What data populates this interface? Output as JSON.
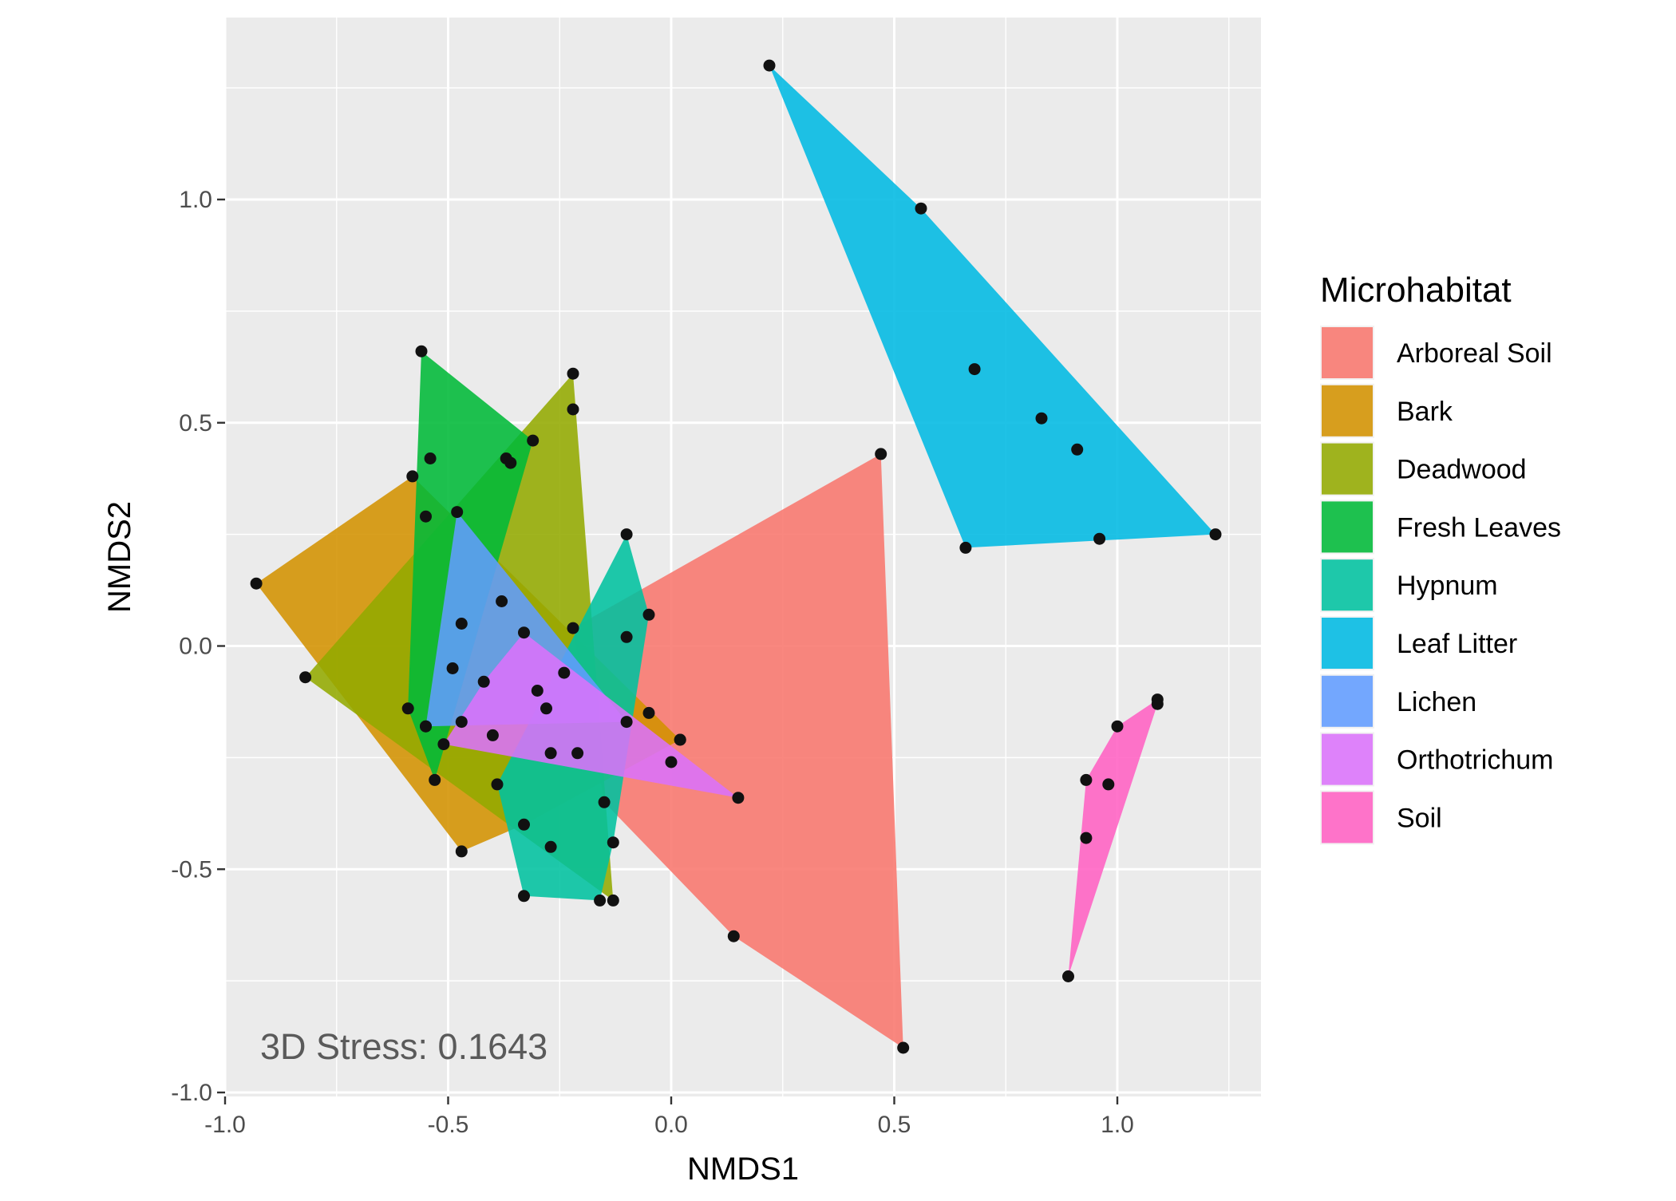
{
  "chart_data": {
    "type": "scatter",
    "title": "",
    "xlabel": "NMDS1",
    "ylabel": "NMDS2",
    "xlim": [
      -1.05,
      1.3
    ],
    "ylim": [
      -1.02,
      1.4
    ],
    "x_ticks": [
      -1.0,
      -0.5,
      0.0,
      0.5,
      1.0
    ],
    "x_tick_labels": [
      "-1.0",
      "-0.5",
      "0.0",
      "0.5",
      "1.0"
    ],
    "y_ticks": [
      -1.0,
      -0.5,
      0.0,
      0.5,
      1.0
    ],
    "y_tick_labels": [
      "-1.0",
      "-0.5",
      "0.0",
      "0.5",
      "1.0"
    ],
    "grid": true,
    "legend_title": "Microhabitat",
    "legend_position": "right",
    "annotation": "3D Stress: 0.1643",
    "series": [
      {
        "name": "Arboreal Soil",
        "color": "#F8766D",
        "points": [
          [
            -0.22,
            0.04
          ],
          [
            -0.1,
            0.02
          ],
          [
            0.47,
            0.43
          ],
          [
            0.52,
            -0.9
          ],
          [
            0.14,
            -0.65
          ],
          [
            -0.15,
            -0.35
          ],
          [
            0.02,
            -0.21
          ],
          [
            -0.05,
            -0.15
          ]
        ]
      },
      {
        "name": "Bark",
        "color": "#D39200",
        "points": [
          [
            -0.93,
            0.14
          ],
          [
            -0.58,
            0.38
          ],
          [
            -0.47,
            -0.46
          ],
          [
            -0.33,
            -0.4
          ],
          [
            0.02,
            -0.21
          ],
          [
            -0.3,
            -0.1
          ]
        ]
      },
      {
        "name": "Deadwood",
        "color": "#93AA00",
        "points": [
          [
            -0.82,
            -0.07
          ],
          [
            -0.22,
            0.61
          ],
          [
            -0.22,
            0.53
          ],
          [
            -0.13,
            -0.57
          ],
          [
            -0.55,
            -0.18
          ],
          [
            -0.4,
            -0.2
          ]
        ]
      },
      {
        "name": "Fresh Leaves",
        "color": "#00BA38",
        "points": [
          [
            -0.56,
            0.66
          ],
          [
            -0.31,
            0.46
          ],
          [
            -0.53,
            -0.3
          ],
          [
            -0.59,
            -0.14
          ],
          [
            -0.54,
            0.42
          ],
          [
            -0.55,
            0.29
          ],
          [
            -0.36,
            0.41
          ],
          [
            -0.37,
            0.42
          ]
        ]
      },
      {
        "name": "Hypnum",
        "color": "#00C19F",
        "points": [
          [
            -0.1,
            0.25
          ],
          [
            -0.05,
            0.07
          ],
          [
            -0.13,
            -0.44
          ],
          [
            -0.16,
            -0.57
          ],
          [
            -0.33,
            -0.56
          ],
          [
            -0.39,
            -0.31
          ],
          [
            -0.27,
            -0.45
          ]
        ]
      },
      {
        "name": "Leaf Litter",
        "color": "#00B9E3",
        "points": [
          [
            0.22,
            1.3
          ],
          [
            0.56,
            0.98
          ],
          [
            0.68,
            0.62
          ],
          [
            0.83,
            0.51
          ],
          [
            0.91,
            0.44
          ],
          [
            1.22,
            0.25
          ],
          [
            0.96,
            0.24
          ],
          [
            0.66,
            0.22
          ]
        ]
      },
      {
        "name": "Lichen",
        "color": "#619CFF",
        "points": [
          [
            -0.48,
            0.3
          ],
          [
            -0.55,
            -0.18
          ],
          [
            -0.47,
            0.05
          ],
          [
            -0.49,
            -0.05
          ],
          [
            -0.38,
            0.1
          ],
          [
            -0.1,
            -0.17
          ]
        ]
      },
      {
        "name": "Orthotrichum",
        "color": "#DB72FB",
        "points": [
          [
            -0.33,
            0.03
          ],
          [
            -0.42,
            -0.08
          ],
          [
            -0.24,
            -0.06
          ],
          [
            -0.28,
            -0.14
          ],
          [
            -0.27,
            -0.24
          ],
          [
            -0.21,
            -0.24
          ],
          [
            0.0,
            -0.26
          ],
          [
            0.15,
            -0.34
          ],
          [
            -0.51,
            -0.22
          ],
          [
            -0.47,
            -0.17
          ]
        ]
      },
      {
        "name": "Soil",
        "color": "#FF61C3",
        "points": [
          [
            1.09,
            -0.12
          ],
          [
            1.09,
            -0.13
          ],
          [
            1.0,
            -0.18
          ],
          [
            0.93,
            -0.3
          ],
          [
            0.98,
            -0.31
          ],
          [
            0.93,
            -0.43
          ],
          [
            0.89,
            -0.74
          ]
        ]
      }
    ]
  }
}
